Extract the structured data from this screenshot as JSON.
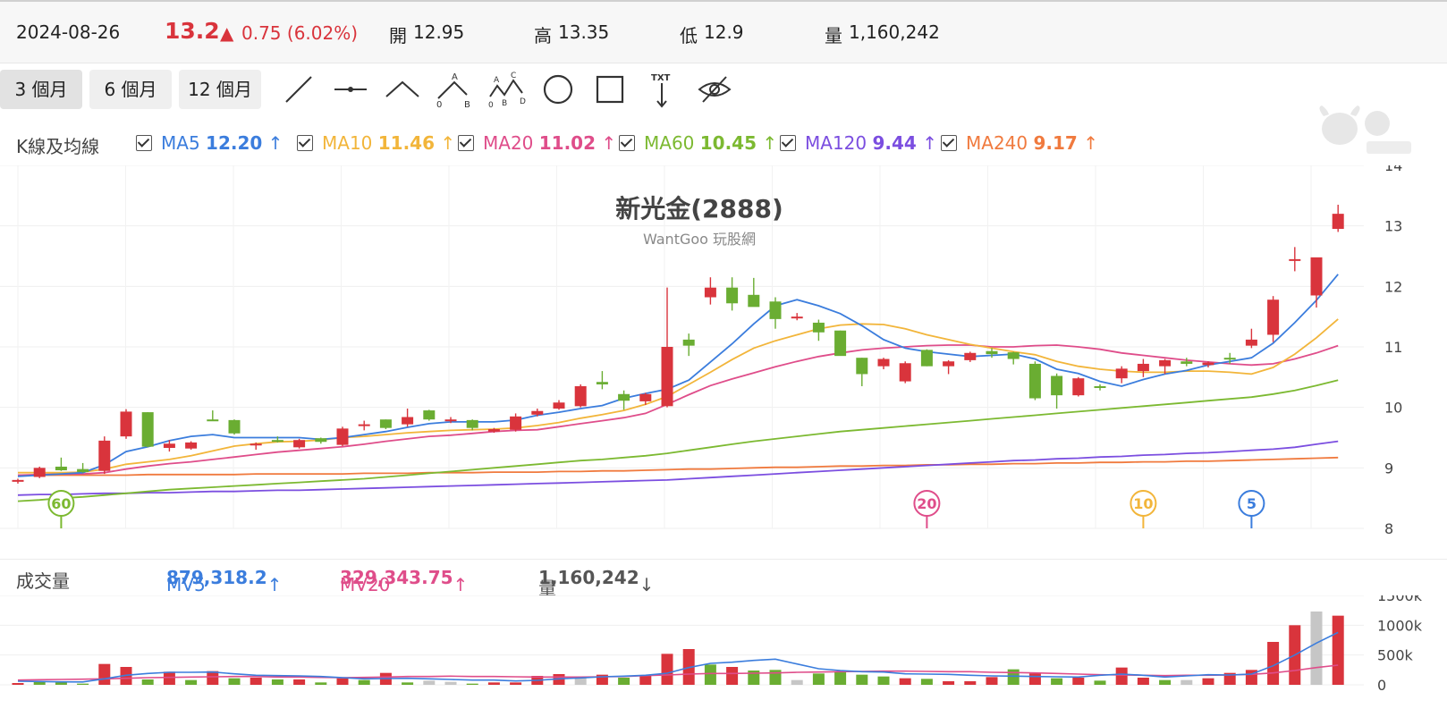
{
  "quote": {
    "date": "2024-08-26",
    "price": "13.2",
    "change": "0.75 (6.02%)",
    "open_label": "開",
    "open": "12.95",
    "high_label": "高",
    "high": "13.35",
    "low_label": "低",
    "low": "12.9",
    "vol_label": "量",
    "volume": "1,160,242"
  },
  "periods": [
    "3 個月",
    "6 個月",
    "12 個月"
  ],
  "tools": [
    "line-tool-icon",
    "horizontal-line-tool-icon",
    "angle-tool-icon",
    "abc-wave-tool-icon",
    "abcd-wave-tool-icon",
    "circle-tool-icon",
    "rectangle-tool-icon",
    "text-tool-icon",
    "hide-drawings-icon"
  ],
  "tool_text": {
    "txt": "TXT",
    "a": "A",
    "b": "B",
    "c": "C",
    "d": "D",
    "zero": "0"
  },
  "legend": {
    "label": "K線及均線",
    "items": [
      {
        "name": "MA5",
        "value": "12.20",
        "color": "#3b7ddd"
      },
      {
        "name": "MA10",
        "value": "11.46",
        "color": "#f2b53a"
      },
      {
        "name": "MA20",
        "value": "11.02",
        "color": "#df4d8a"
      },
      {
        "name": "MA60",
        "value": "10.45",
        "color": "#7cb931"
      },
      {
        "name": "MA120",
        "value": "9.44",
        "color": "#7b4ee0"
      },
      {
        "name": "MA240",
        "value": "9.17",
        "color": "#f07a3e"
      }
    ]
  },
  "vol_header": {
    "label": "成交量",
    "mv5_name": "MV5",
    "mv5": "879,318.2",
    "mv20_name": "MV20",
    "mv20": "329,343.75",
    "vol_name": "量",
    "vol": "1,160,242"
  },
  "colors": {
    "up": "#d9343c",
    "down": "#6aad32",
    "neutral": "#c6c6c6"
  },
  "chart_data": {
    "type": "candlestick",
    "title": "新光金(2888)",
    "subtitle": "WantGoo 玩股網",
    "ylim": [
      8,
      14
    ],
    "y_ticks": [
      "14",
      "13",
      "12",
      "11",
      "10",
      "9",
      "8"
    ],
    "vol_ticks": [
      "1500k",
      "1000k",
      "500k",
      "0"
    ],
    "vol_ylim": [
      0,
      1500000
    ],
    "markers": [
      {
        "label": "60",
        "index": 2,
        "color": "#7cb931"
      },
      {
        "label": "20",
        "index": 42,
        "color": "#df4d8a"
      },
      {
        "label": "10",
        "index": 52,
        "color": "#f2b53a"
      },
      {
        "label": "5",
        "index": 57,
        "color": "#3b7ddd"
      }
    ],
    "ohlc": [
      [
        8.78,
        8.82,
        8.74,
        8.8
      ],
      [
        8.85,
        9.02,
        8.83,
        9.0
      ],
      [
        9.02,
        9.17,
        8.95,
        8.96
      ],
      [
        8.98,
        9.08,
        8.92,
        8.93
      ],
      [
        8.95,
        9.52,
        8.9,
        9.45
      ],
      [
        9.52,
        9.97,
        9.48,
        9.93
      ],
      [
        9.92,
        9.92,
        9.34,
        9.35
      ],
      [
        9.33,
        9.46,
        9.27,
        9.4
      ],
      [
        9.32,
        9.44,
        9.3,
        9.42
      ],
      [
        9.8,
        9.95,
        9.78,
        9.77
      ],
      [
        9.79,
        9.8,
        9.55,
        9.57
      ],
      [
        9.38,
        9.42,
        9.3,
        9.4
      ],
      [
        9.46,
        9.52,
        9.42,
        9.44
      ],
      [
        9.34,
        9.48,
        9.32,
        9.46
      ],
      [
        9.49,
        9.5,
        9.4,
        9.43
      ],
      [
        9.38,
        9.68,
        9.36,
        9.65
      ],
      [
        9.72,
        9.78,
        9.62,
        9.72
      ],
      [
        9.8,
        9.8,
        9.64,
        9.66
      ],
      [
        9.72,
        9.98,
        9.68,
        9.84
      ],
      [
        9.95,
        9.96,
        9.78,
        9.8
      ],
      [
        9.78,
        9.84,
        9.74,
        9.8
      ],
      [
        9.79,
        9.8,
        9.62,
        9.66
      ],
      [
        9.6,
        9.66,
        9.58,
        9.64
      ],
      [
        9.63,
        9.9,
        9.6,
        9.85
      ],
      [
        9.88,
        9.98,
        9.85,
        9.94
      ],
      [
        9.98,
        10.12,
        9.96,
        10.08
      ],
      [
        10.02,
        10.38,
        10.0,
        10.35
      ],
      [
        10.42,
        10.6,
        10.3,
        10.38
      ],
      [
        10.22,
        10.28,
        9.96,
        10.11
      ],
      [
        10.1,
        10.24,
        10.04,
        10.22
      ],
      [
        10.02,
        11.98,
        10.0,
        11.0
      ],
      [
        11.12,
        11.22,
        10.85,
        11.02
      ],
      [
        11.82,
        12.15,
        11.7,
        11.98
      ],
      [
        11.98,
        12.15,
        11.6,
        11.72
      ],
      [
        11.86,
        12.14,
        11.68,
        11.66
      ],
      [
        11.75,
        11.82,
        11.3,
        11.46
      ],
      [
        11.48,
        11.56,
        11.44,
        11.5
      ],
      [
        11.4,
        11.45,
        11.1,
        11.24
      ],
      [
        11.27,
        11.27,
        10.9,
        10.85
      ],
      [
        10.82,
        10.82,
        10.35,
        10.55
      ],
      [
        10.68,
        10.82,
        10.63,
        10.8
      ],
      [
        10.43,
        10.76,
        10.4,
        10.73
      ],
      [
        10.95,
        10.96,
        10.68,
        10.68
      ],
      [
        10.68,
        10.78,
        10.55,
        10.76
      ],
      [
        10.78,
        10.92,
        10.75,
        10.9
      ],
      [
        10.93,
        10.98,
        10.82,
        10.88
      ],
      [
        10.91,
        10.92,
        10.71,
        10.8
      ],
      [
        10.72,
        10.76,
        10.12,
        10.15
      ],
      [
        10.52,
        10.56,
        9.98,
        10.2
      ],
      [
        10.2,
        10.5,
        10.18,
        10.48
      ],
      [
        10.35,
        10.38,
        10.28,
        10.34
      ],
      [
        10.48,
        10.68,
        10.4,
        10.64
      ],
      [
        10.6,
        10.8,
        10.5,
        10.72
      ],
      [
        10.68,
        10.8,
        10.55,
        10.78
      ],
      [
        10.76,
        10.82,
        10.68,
        10.72
      ],
      [
        10.7,
        10.76,
        10.66,
        10.74
      ],
      [
        10.82,
        10.9,
        10.72,
        10.8
      ],
      [
        11.02,
        11.3,
        10.98,
        11.12
      ],
      [
        11.2,
        11.84,
        11.08,
        11.78
      ],
      [
        12.45,
        12.65,
        12.25,
        12.45
      ],
      [
        11.85,
        12.45,
        11.65,
        12.48
      ],
      [
        12.95,
        13.35,
        12.9,
        13.2
      ]
    ],
    "ma5": [
      8.86,
      8.88,
      8.9,
      8.92,
      9.05,
      9.27,
      9.35,
      9.45,
      9.52,
      9.55,
      9.5,
      9.5,
      9.5,
      9.5,
      9.47,
      9.5,
      9.55,
      9.6,
      9.67,
      9.73,
      9.76,
      9.76,
      9.76,
      9.79,
      9.87,
      9.92,
      9.98,
      10.03,
      10.15,
      10.23,
      10.3,
      10.45,
      10.75,
      11.05,
      11.38,
      11.68,
      11.78,
      11.68,
      11.55,
      11.35,
      11.12,
      10.98,
      10.92,
      10.88,
      10.84,
      10.86,
      10.88,
      10.8,
      10.63,
      10.56,
      10.43,
      10.35,
      10.46,
      10.55,
      10.61,
      10.7,
      10.76,
      10.82,
      11.06,
      11.4,
      11.77,
      12.2
    ],
    "ma10": [
      8.92,
      8.92,
      8.92,
      8.93,
      8.98,
      9.06,
      9.1,
      9.14,
      9.2,
      9.28,
      9.36,
      9.4,
      9.43,
      9.44,
      9.46,
      9.5,
      9.52,
      9.55,
      9.58,
      9.6,
      9.62,
      9.63,
      9.64,
      9.66,
      9.7,
      9.75,
      9.82,
      9.88,
      9.95,
      10.05,
      10.18,
      10.38,
      10.58,
      10.79,
      10.98,
      11.1,
      11.2,
      11.3,
      11.36,
      11.38,
      11.37,
      11.3,
      11.2,
      11.12,
      11.04,
      10.98,
      10.92,
      10.87,
      10.76,
      10.68,
      10.63,
      10.6,
      10.58,
      10.58,
      10.6,
      10.6,
      10.58,
      10.55,
      10.66,
      10.88,
      11.15,
      11.46
    ],
    "ma20": [
      8.88,
      8.89,
      8.9,
      8.9,
      8.92,
      8.98,
      9.03,
      9.07,
      9.1,
      9.14,
      9.18,
      9.22,
      9.26,
      9.29,
      9.32,
      9.35,
      9.39,
      9.44,
      9.48,
      9.52,
      9.54,
      9.57,
      9.6,
      9.62,
      9.63,
      9.68,
      9.73,
      9.78,
      9.83,
      9.9,
      10.05,
      10.21,
      10.36,
      10.47,
      10.57,
      10.67,
      10.76,
      10.84,
      10.9,
      10.95,
      10.98,
      11.0,
      11.02,
      11.03,
      11.03,
      11.0,
      11.0,
      11.02,
      11.03,
      11.0,
      10.96,
      10.9,
      10.86,
      10.82,
      10.78,
      10.75,
      10.72,
      10.7,
      10.72,
      10.8,
      10.9,
      11.02
    ],
    "ma60": [
      8.45,
      8.47,
      8.5,
      8.52,
      8.55,
      8.58,
      8.61,
      8.64,
      8.66,
      8.68,
      8.7,
      8.72,
      8.74,
      8.76,
      8.78,
      8.8,
      8.82,
      8.85,
      8.88,
      8.91,
      8.94,
      8.97,
      9.0,
      9.03,
      9.06,
      9.09,
      9.12,
      9.14,
      9.17,
      9.2,
      9.24,
      9.29,
      9.34,
      9.39,
      9.44,
      9.48,
      9.52,
      9.56,
      9.6,
      9.63,
      9.66,
      9.69,
      9.72,
      9.75,
      9.78,
      9.81,
      9.84,
      9.87,
      9.9,
      9.93,
      9.96,
      9.99,
      10.02,
      10.05,
      10.08,
      10.11,
      10.14,
      10.17,
      10.22,
      10.28,
      10.36,
      10.45
    ],
    "ma120": [
      8.55,
      8.56,
      8.56,
      8.57,
      8.58,
      8.58,
      8.59,
      8.59,
      8.6,
      8.61,
      8.61,
      8.62,
      8.63,
      8.63,
      8.64,
      8.65,
      8.66,
      8.67,
      8.68,
      8.69,
      8.7,
      8.71,
      8.72,
      8.73,
      8.74,
      8.75,
      8.76,
      8.77,
      8.78,
      8.79,
      8.8,
      8.82,
      8.84,
      8.86,
      8.88,
      8.9,
      8.92,
      8.94,
      8.96,
      8.98,
      9.0,
      9.02,
      9.04,
      9.06,
      9.08,
      9.1,
      9.12,
      9.13,
      9.15,
      9.16,
      9.18,
      9.19,
      9.21,
      9.22,
      9.24,
      9.25,
      9.27,
      9.29,
      9.31,
      9.34,
      9.39,
      9.44
    ],
    "ma240": [
      8.88,
      8.88,
      8.88,
      8.88,
      8.88,
      8.88,
      8.89,
      8.89,
      8.89,
      8.89,
      8.89,
      8.9,
      8.9,
      8.9,
      8.9,
      8.9,
      8.91,
      8.91,
      8.91,
      8.92,
      8.92,
      8.92,
      8.93,
      8.93,
      8.93,
      8.94,
      8.94,
      8.95,
      8.95,
      8.96,
      8.97,
      8.98,
      8.98,
      8.99,
      9.0,
      9.01,
      9.01,
      9.02,
      9.03,
      9.03,
      9.04,
      9.04,
      9.05,
      9.05,
      9.06,
      9.06,
      9.07,
      9.07,
      9.08,
      9.08,
      9.09,
      9.09,
      9.1,
      9.1,
      9.11,
      9.11,
      9.12,
      9.13,
      9.14,
      9.15,
      9.16,
      9.17
    ],
    "volume": [
      30000,
      60000,
      40000,
      20000,
      350000,
      300000,
      90000,
      220000,
      80000,
      230000,
      110000,
      120000,
      90000,
      90000,
      40000,
      110000,
      80000,
      200000,
      40000,
      70000,
      50000,
      20000,
      40000,
      40000,
      150000,
      180000,
      120000,
      170000,
      120000,
      160000,
      520000,
      600000,
      340000,
      300000,
      240000,
      250000,
      80000,
      190000,
      210000,
      170000,
      140000,
      110000,
      100000,
      60000,
      60000,
      130000,
      260000,
      190000,
      110000,
      120000,
      70000,
      290000,
      120000,
      80000,
      80000,
      110000,
      200000,
      250000,
      720000,
      1000000,
      1230000,
      1160000
    ],
    "vol_colors": [
      "up",
      "down",
      "down",
      "down",
      "up",
      "up",
      "down",
      "up",
      "down",
      "up",
      "down",
      "up",
      "down",
      "up",
      "down",
      "up",
      "down",
      "up",
      "down",
      "neutral",
      "neutral",
      "down",
      "up",
      "up",
      "up",
      "up",
      "neutral",
      "up",
      "down",
      "up",
      "up",
      "up",
      "down",
      "up",
      "down",
      "down",
      "neutral",
      "down",
      "down",
      "down",
      "down",
      "up",
      "down",
      "up",
      "up",
      "up",
      "down",
      "up",
      "down",
      "up",
      "down",
      "up",
      "up",
      "down",
      "neutral",
      "up",
      "up",
      "up",
      "up",
      "up",
      "neutral",
      "up"
    ],
    "mv5": [
      60000,
      55000,
      50000,
      48000,
      100000,
      160000,
      190000,
      210000,
      210000,
      215000,
      185000,
      160000,
      155000,
      150000,
      140000,
      120000,
      100000,
      105000,
      110000,
      100000,
      90000,
      80000,
      80000,
      65000,
      75000,
      100000,
      115000,
      135000,
      145000,
      160000,
      195000,
      290000,
      360000,
      380000,
      410000,
      430000,
      350000,
      270000,
      240000,
      220000,
      215000,
      185000,
      180000,
      175000,
      160000,
      150000,
      145000,
      140000,
      135000,
      130000,
      160000,
      180000,
      160000,
      130000,
      150000,
      170000,
      165000,
      180000,
      320000,
      500000,
      700000,
      879318
    ],
    "mv20": [
      80000,
      85000,
      90000,
      95000,
      100000,
      110000,
      120000,
      125000,
      130000,
      135000,
      140000,
      140000,
      130000,
      130000,
      125000,
      120000,
      125000,
      130000,
      140000,
      140000,
      145000,
      140000,
      140000,
      135000,
      130000,
      130000,
      130000,
      135000,
      140000,
      155000,
      165000,
      180000,
      190000,
      190000,
      195000,
      200000,
      210000,
      215000,
      220000,
      225000,
      230000,
      230000,
      225000,
      220000,
      220000,
      210000,
      205000,
      200000,
      190000,
      180000,
      170000,
      165000,
      160000,
      155000,
      160000,
      160000,
      165000,
      175000,
      200000,
      240000,
      290000,
      329344
    ]
  }
}
